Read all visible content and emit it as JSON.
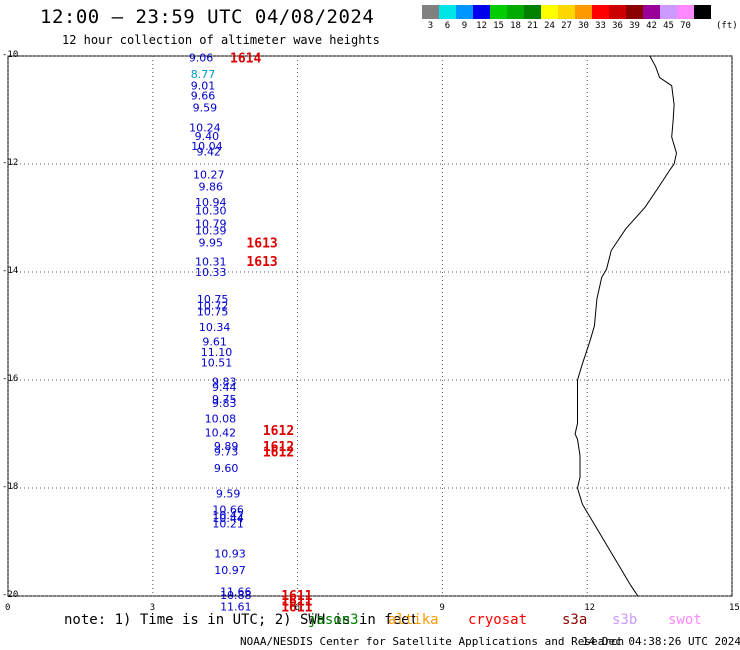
{
  "header": {
    "title": "12:00 – 23:59 UTC 04/08/2024",
    "subtitle": "12 hour collection of altimeter wave heights"
  },
  "colorbar": {
    "unit": "(ft)",
    "bins": [
      {
        "label": "3",
        "color": "#808080"
      },
      {
        "label": "6",
        "color": "#00e5e5"
      },
      {
        "label": "9",
        "color": "#0096ff"
      },
      {
        "label": "12",
        "color": "#0000ee"
      },
      {
        "label": "15",
        "color": "#00cc00"
      },
      {
        "label": "18",
        "color": "#00aa00"
      },
      {
        "label": "21",
        "color": "#008000"
      },
      {
        "label": "24",
        "color": "#ffff00"
      },
      {
        "label": "27",
        "color": "#ffd700"
      },
      {
        "label": "30",
        "color": "#ff9900"
      },
      {
        "label": "33",
        "color": "#ff0000"
      },
      {
        "label": "36",
        "color": "#cc0000"
      },
      {
        "label": "39",
        "color": "#8b0000"
      },
      {
        "label": "42",
        "color": "#990099"
      },
      {
        "label": "45",
        "color": "#cc99ff"
      },
      {
        "label": "70",
        "color": "#ff88ff"
      },
      {
        "label": "",
        "color": "#000000"
      }
    ]
  },
  "map": {
    "lat_ticks": [
      "-10",
      "-12",
      "-14",
      "-16",
      "-18",
      "-20"
    ],
    "lon_ticks": [
      "0",
      "3",
      "6",
      "9",
      "12",
      "15"
    ],
    "lat_range": [
      -20,
      -10
    ],
    "lon_range": [
      0,
      15
    ],
    "observations": [
      {
        "lon": 4.0,
        "lat": -10.03,
        "text": "9.06",
        "color": "#0000cc"
      },
      {
        "lon": 4.04,
        "lat": -10.33,
        "text": "8.77",
        "color": "#0096cc"
      },
      {
        "lon": 4.04,
        "lat": -10.55,
        "text": "9.01",
        "color": "#0000cc"
      },
      {
        "lon": 4.04,
        "lat": -10.73,
        "text": "9.66",
        "color": "#0000cc"
      },
      {
        "lon": 4.08,
        "lat": -10.95,
        "text": "9.59",
        "color": "#0000cc"
      },
      {
        "lon": 4.08,
        "lat": -11.32,
        "text": "10.24",
        "color": "#0000cc"
      },
      {
        "lon": 4.12,
        "lat": -11.48,
        "text": "9.40",
        "color": "#0000cc"
      },
      {
        "lon": 4.12,
        "lat": -11.67,
        "text": "10.04",
        "color": "#0000cc"
      },
      {
        "lon": 4.16,
        "lat": -11.77,
        "text": "9.42",
        "color": "#0000cc"
      },
      {
        "lon": 4.16,
        "lat": -12.19,
        "text": "10.27",
        "color": "#0000cc"
      },
      {
        "lon": 4.2,
        "lat": -12.42,
        "text": "9.86",
        "color": "#0000cc"
      },
      {
        "lon": 4.2,
        "lat": -12.7,
        "text": "10.94",
        "color": "#0000cc"
      },
      {
        "lon": 4.2,
        "lat": -12.86,
        "text": "10.30",
        "color": "#0000cc"
      },
      {
        "lon": 4.2,
        "lat": -13.1,
        "text": "10.79",
        "color": "#0000cc"
      },
      {
        "lon": 4.2,
        "lat": -13.23,
        "text": "10.39",
        "color": "#0000cc"
      },
      {
        "lon": 4.2,
        "lat": -13.45,
        "text": "9.95",
        "color": "#0000cc"
      },
      {
        "lon": 4.2,
        "lat": -13.81,
        "text": "10.31",
        "color": "#0000cc"
      },
      {
        "lon": 4.2,
        "lat": -14.0,
        "text": "10.33",
        "color": "#0000cc"
      },
      {
        "lon": 4.24,
        "lat": -14.5,
        "text": "10.75",
        "color": "#0000cc"
      },
      {
        "lon": 4.24,
        "lat": -14.62,
        "text": "10.72",
        "color": "#0000cc"
      },
      {
        "lon": 4.24,
        "lat": -14.73,
        "text": "10.75",
        "color": "#0000cc"
      },
      {
        "lon": 4.28,
        "lat": -15.02,
        "text": "10.34",
        "color": "#0000cc"
      },
      {
        "lon": 4.28,
        "lat": -15.29,
        "text": "9.61",
        "color": "#0000cc"
      },
      {
        "lon": 4.32,
        "lat": -15.48,
        "text": "11.10",
        "color": "#0000cc"
      },
      {
        "lon": 4.32,
        "lat": -15.68,
        "text": "10.51",
        "color": "#0000cc"
      },
      {
        "lon": 4.48,
        "lat": -16.03,
        "text": "9.83",
        "color": "#0000cc"
      },
      {
        "lon": 4.48,
        "lat": -16.13,
        "text": "9.44",
        "color": "#0000cc"
      },
      {
        "lon": 4.48,
        "lat": -16.35,
        "text": "9.75",
        "color": "#0000cc"
      },
      {
        "lon": 4.48,
        "lat": -16.43,
        "text": "9.83",
        "color": "#0000cc"
      },
      {
        "lon": 4.4,
        "lat": -16.71,
        "text": "10.08",
        "color": "#0000cc"
      },
      {
        "lon": 4.4,
        "lat": -16.97,
        "text": "10.42",
        "color": "#0000cc"
      },
      {
        "lon": 4.52,
        "lat": -17.22,
        "text": "9.89",
        "color": "#0000cc"
      },
      {
        "lon": 4.52,
        "lat": -17.32,
        "text": "9.73",
        "color": "#0000cc"
      },
      {
        "lon": 4.52,
        "lat": -17.63,
        "text": "9.60",
        "color": "#0000cc"
      },
      {
        "lon": 4.56,
        "lat": -18.1,
        "text": "9.59",
        "color": "#0000cc"
      },
      {
        "lon": 4.56,
        "lat": -18.4,
        "text": "10.66",
        "color": "#0000cc"
      },
      {
        "lon": 4.56,
        "lat": -18.5,
        "text": "10.42",
        "color": "#0000cc"
      },
      {
        "lon": 4.56,
        "lat": -18.56,
        "text": "10.44",
        "color": "#0000cc"
      },
      {
        "lon": 4.56,
        "lat": -18.66,
        "text": "10.21",
        "color": "#0000cc"
      },
      {
        "lon": 4.6,
        "lat": -19.21,
        "text": "10.93",
        "color": "#0000cc"
      },
      {
        "lon": 4.6,
        "lat": -19.52,
        "text": "10.97",
        "color": "#0000cc"
      },
      {
        "lon": 4.72,
        "lat": -19.92,
        "text": "11.66",
        "color": "#0000cc"
      },
      {
        "lon": 4.72,
        "lat": -19.98,
        "text": "10.88",
        "color": "#0000cc"
      },
      {
        "lon": 4.72,
        "lat": -20.19,
        "text": "11.61",
        "color": "#0000cc"
      }
    ],
    "passes": [
      {
        "lon": 4.6,
        "lat": -10.03,
        "text": "1614"
      },
      {
        "lon": 4.94,
        "lat": -13.45,
        "text": "1613"
      },
      {
        "lon": 4.94,
        "lat": -13.8,
        "text": "1613"
      },
      {
        "lon": 5.28,
        "lat": -16.93,
        "text": "1612"
      },
      {
        "lon": 5.28,
        "lat": -17.22,
        "text": "1612"
      },
      {
        "lon": 5.28,
        "lat": -17.32,
        "text": "1612"
      },
      {
        "lon": 5.66,
        "lat": -19.98,
        "text": "1611"
      },
      {
        "lon": 5.66,
        "lat": -20.08,
        "text": "1611"
      },
      {
        "lon": 5.66,
        "lat": -20.19,
        "text": "1611"
      }
    ],
    "coastline": [
      [
        13.3,
        -10.0
      ],
      [
        13.42,
        -10.2
      ],
      [
        13.5,
        -10.4
      ],
      [
        13.75,
        -10.55
      ],
      [
        13.8,
        -10.9
      ],
      [
        13.78,
        -11.2
      ],
      [
        13.75,
        -11.5
      ],
      [
        13.85,
        -11.8
      ],
      [
        13.8,
        -12.0
      ],
      [
        13.72,
        -12.1
      ],
      [
        13.5,
        -12.4
      ],
      [
        13.2,
        -12.8
      ],
      [
        12.8,
        -13.2
      ],
      [
        12.5,
        -13.6
      ],
      [
        12.4,
        -13.95
      ],
      [
        12.3,
        -14.1
      ],
      [
        12.2,
        -14.5
      ],
      [
        12.15,
        -15.0
      ],
      [
        12.05,
        -15.3
      ],
      [
        11.9,
        -15.7
      ],
      [
        11.8,
        -16.0
      ],
      [
        11.8,
        -16.4
      ],
      [
        11.8,
        -16.8
      ],
      [
        11.75,
        -17.0
      ],
      [
        11.8,
        -17.1
      ],
      [
        11.85,
        -17.4
      ],
      [
        11.85,
        -17.8
      ],
      [
        11.8,
        -18.0
      ],
      [
        11.9,
        -18.3
      ],
      [
        12.1,
        -18.6
      ],
      [
        12.3,
        -18.9
      ],
      [
        12.5,
        -19.2
      ],
      [
        12.7,
        -19.5
      ],
      [
        12.9,
        -19.8
      ],
      [
        13.05,
        -20.0
      ]
    ]
  },
  "footer": {
    "note": "note: 1) Time is in UTC; 2) SWH is in feet",
    "satellites": [
      {
        "name": "jason3",
        "color": "#008000"
      },
      {
        "name": "altika",
        "color": "#ff9900"
      },
      {
        "name": "cryosat",
        "color": "#ff0000"
      },
      {
        "name": "s3a",
        "color": "#8b0000"
      },
      {
        "name": "s3b",
        "color": "#cc99ff"
      },
      {
        "name": "swot",
        "color": "#ff88ff"
      }
    ],
    "credit": "NOAA/NESDIS Center for Satellite Applications and Research",
    "timestamp": "14 Dec 04:38:26 UTC 2024"
  }
}
